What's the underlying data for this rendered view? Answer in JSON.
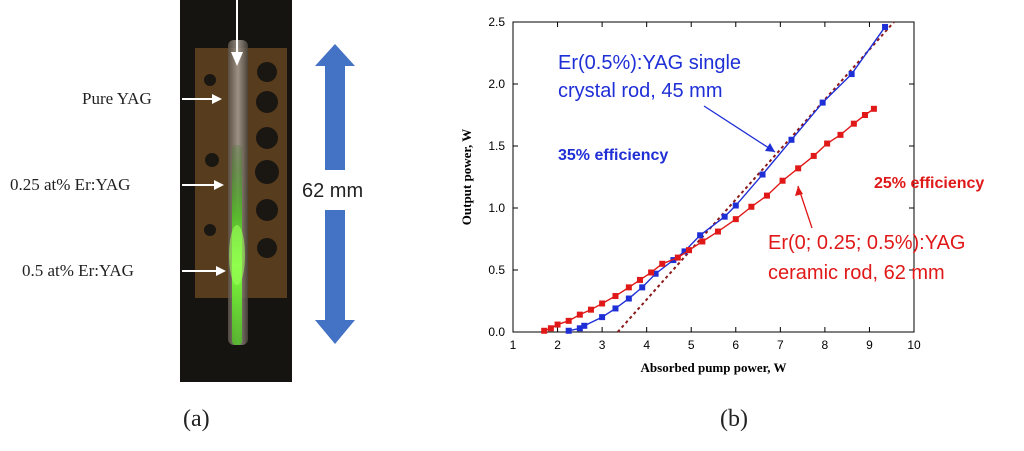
{
  "panel_a": {
    "caption": "(a)",
    "labels": {
      "pure": "Pure YAG",
      "er025": "0.25 at% Er:YAG",
      "er05": "0.5 at% Er:YAG"
    },
    "length_label": "62 mm",
    "colors": {
      "arrow": "#4472c4",
      "glow": "#7dff3a"
    }
  },
  "panel_b": {
    "caption": "(b)",
    "annotations": {
      "crystal_line1": "Er(0.5%):YAG single",
      "crystal_line2": "crystal rod, 45 mm",
      "crystal_eff": "35% efficiency",
      "ceramic_eff": "25% efficiency",
      "ceramic_line1": "Er(0; 0.25; 0.5%):YAG",
      "ceramic_line2": "ceramic rod, 62 mm"
    }
  },
  "chart_data": {
    "type": "scatter",
    "title": "",
    "xlabel": "Absorbed pump power, W",
    "ylabel": "Output power, W",
    "xlim": [
      1,
      10
    ],
    "ylim": [
      0,
      2.5
    ],
    "x_ticks": [
      "1",
      "2",
      "3",
      "4",
      "5",
      "6",
      "7",
      "8",
      "9",
      "10"
    ],
    "y_ticks": [
      "0.0",
      "0.5",
      "1.0",
      "1.5",
      "2.0",
      "2.5"
    ],
    "series": [
      {
        "name": "Er(0.5%):YAG single crystal rod, 45 mm",
        "color": "#1f2fd6",
        "x": [
          2.25,
          2.5,
          2.6,
          3.0,
          3.3,
          3.6,
          3.9,
          4.2,
          4.6,
          4.85,
          5.2,
          5.75,
          6.0,
          6.6,
          7.25,
          7.95,
          8.6,
          9.35
        ],
        "y": [
          0.01,
          0.03,
          0.05,
          0.12,
          0.19,
          0.27,
          0.36,
          0.47,
          0.58,
          0.65,
          0.78,
          0.93,
          1.02,
          1.27,
          1.55,
          1.85,
          2.08,
          2.46
        ]
      },
      {
        "name": "Er(0; 0.25; 0.5%):YAG ceramic rod, 62 mm",
        "color": "#e01818",
        "x": [
          1.7,
          1.85,
          2.0,
          2.25,
          2.5,
          2.75,
          3.0,
          3.3,
          3.6,
          3.85,
          4.1,
          4.35,
          4.7,
          4.95,
          5.25,
          5.6,
          6.0,
          6.35,
          6.7,
          7.05,
          7.4,
          7.75,
          8.05,
          8.35,
          8.65,
          8.9,
          9.1
        ],
        "y": [
          0.01,
          0.03,
          0.06,
          0.09,
          0.14,
          0.18,
          0.23,
          0.29,
          0.36,
          0.42,
          0.48,
          0.55,
          0.6,
          0.66,
          0.73,
          0.81,
          0.91,
          1.01,
          1.1,
          1.22,
          1.32,
          1.42,
          1.52,
          1.59,
          1.68,
          1.75,
          1.8
        ]
      }
    ],
    "fit_line": {
      "color": "#8b1a1a",
      "x": [
        3.35,
        9.55
      ],
      "y": [
        0.0,
        2.5
      ]
    }
  }
}
